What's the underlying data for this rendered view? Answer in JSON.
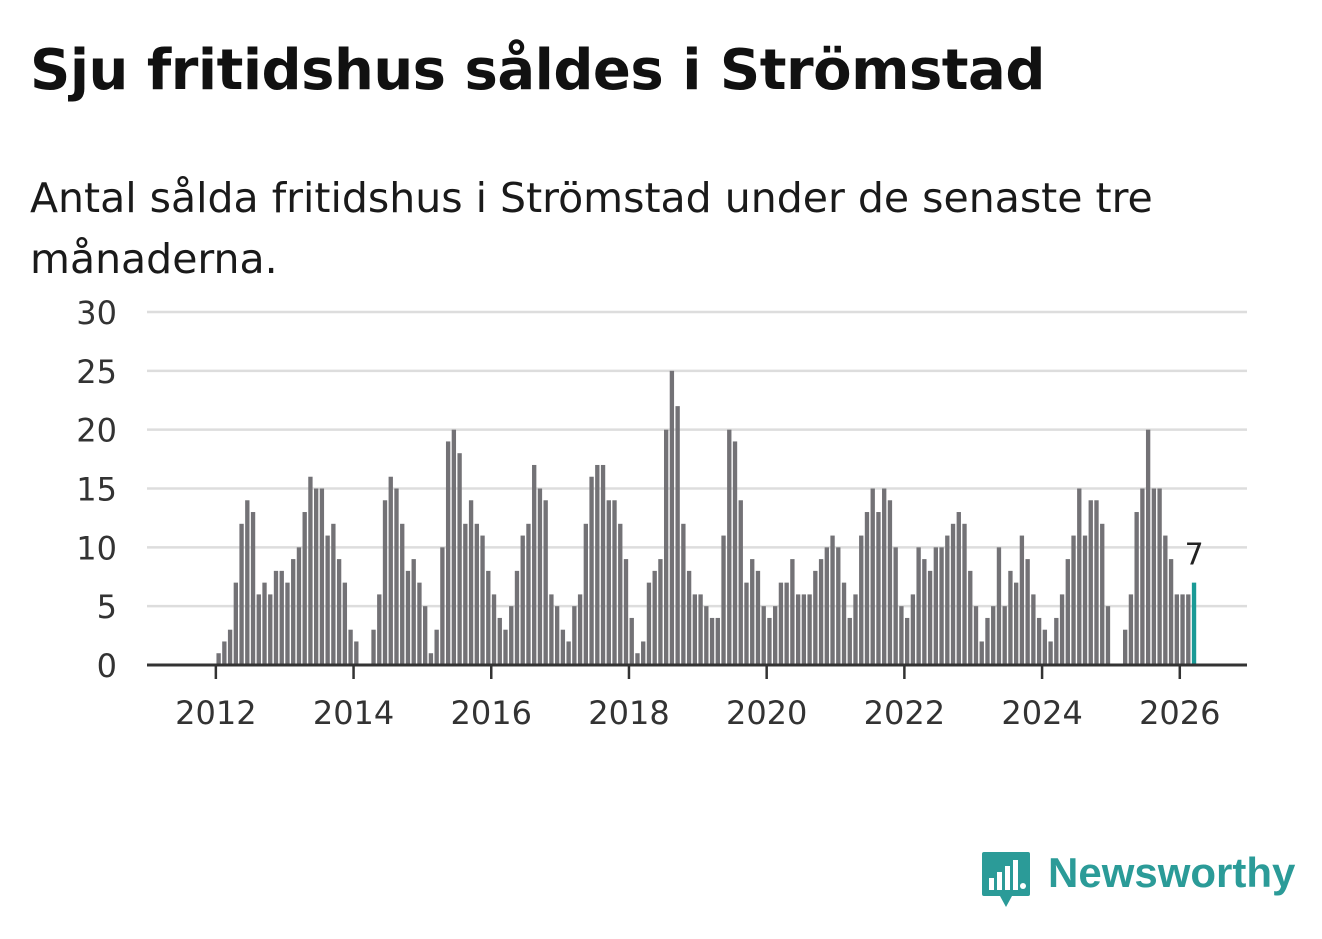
{
  "title": "Sju fritidshus såldes i Strömstad",
  "subtitle": "Antal sålda fritidshus i Strömstad under de senaste tre månaderna.",
  "brand": {
    "name": "Newsworthy",
    "color": "#2b9b98",
    "icon": "newsworthy-logo-icon"
  },
  "colors": {
    "bar": "#737276",
    "highlight": "#1a9a96",
    "grid": "#dddddd",
    "axis": "#333333"
  },
  "chart_data": {
    "type": "bar",
    "title": "Sju fritidshus såldes i Strömstad",
    "xlabel": "",
    "ylabel": "",
    "ylim": [
      0,
      30
    ],
    "yticks": [
      0,
      5,
      10,
      15,
      20,
      25,
      30
    ],
    "xticks": [
      "2012",
      "2014",
      "2016",
      "2018",
      "2020",
      "2022",
      "2024",
      "2026"
    ],
    "grid": true,
    "start": "2011-01",
    "end": "2026-03",
    "values": [
      0,
      0,
      0,
      0,
      0,
      0,
      0,
      0,
      0,
      0,
      0,
      0,
      1,
      2,
      3,
      7,
      12,
      14,
      13,
      6,
      7,
      6,
      8,
      8,
      7,
      9,
      10,
      13,
      16,
      15,
      15,
      11,
      12,
      9,
      7,
      3,
      2,
      0,
      0,
      3,
      6,
      14,
      16,
      15,
      12,
      8,
      9,
      7,
      5,
      1,
      3,
      10,
      19,
      20,
      18,
      12,
      14,
      12,
      11,
      8,
      6,
      4,
      3,
      5,
      8,
      11,
      12,
      17,
      15,
      14,
      6,
      5,
      3,
      2,
      5,
      6,
      12,
      16,
      17,
      17,
      14,
      14,
      12,
      9,
      4,
      1,
      2,
      7,
      8,
      9,
      20,
      25,
      22,
      12,
      8,
      6,
      6,
      5,
      4,
      4,
      11,
      20,
      19,
      14,
      7,
      9,
      8,
      5,
      4,
      5,
      7,
      7,
      9,
      6,
      6,
      6,
      8,
      9,
      10,
      11,
      10,
      7,
      4,
      6,
      11,
      13,
      15,
      13,
      15,
      14,
      10,
      5,
      4,
      6,
      10,
      9,
      8,
      10,
      10,
      11,
      12,
      13,
      12,
      8,
      5,
      2,
      4,
      5,
      10,
      5,
      8,
      7,
      11,
      9,
      6,
      4,
      3,
      2,
      4,
      6,
      9,
      11,
      15,
      11,
      14,
      14,
      12,
      5,
      0,
      0,
      3,
      6,
      13,
      15,
      20,
      15,
      15,
      11,
      9,
      6,
      6,
      6,
      7
    ],
    "highlight_label": "7",
    "annotations": [
      {
        "text": "7",
        "target": "last-bar"
      }
    ]
  }
}
